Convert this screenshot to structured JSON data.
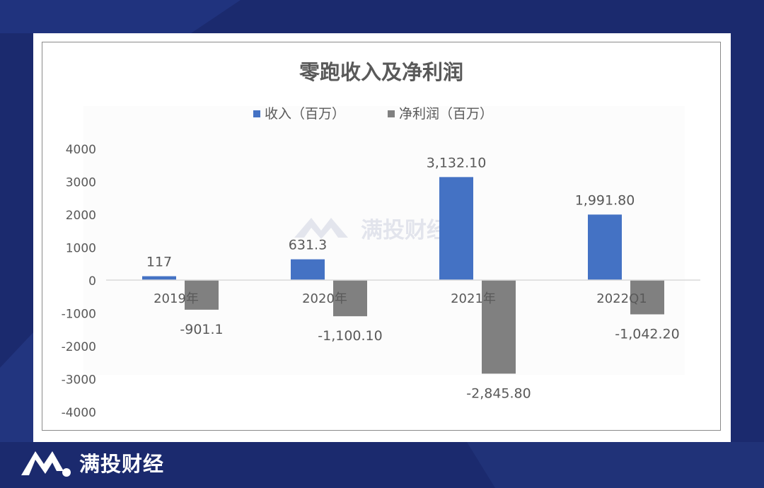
{
  "brand": {
    "name": "满投财经"
  },
  "watermark": {
    "text": "满投财经"
  },
  "colors": {
    "background": "#1b2a6e",
    "revenue": "#4472c4",
    "net_profit": "#808080"
  },
  "chart_data": {
    "type": "bar",
    "title": "零跑收入及净利润",
    "categories": [
      "2019年",
      "2020年",
      "2021年",
      "2022Q1"
    ],
    "series": [
      {
        "name": "收入（百万）",
        "values": [
          117,
          631.3,
          3132.1,
          1991.8
        ],
        "labels": [
          "117",
          "631.3",
          "3,132.10",
          "1,991.80"
        ],
        "color": "#4472c4"
      },
      {
        "name": "净利润（百万）",
        "values": [
          -901.1,
          -1100.1,
          -2845.8,
          -1042.2
        ],
        "labels": [
          "-901.1",
          "-1,100.10",
          "-2,845.80",
          "-1,042.20"
        ],
        "color": "#808080"
      }
    ],
    "yticks": [
      4000,
      3000,
      2000,
      1000,
      0,
      -1000,
      -2000,
      -3000,
      -4000
    ],
    "ylim": [
      -4000,
      4000
    ],
    "legend_position": "top",
    "grid": false
  }
}
